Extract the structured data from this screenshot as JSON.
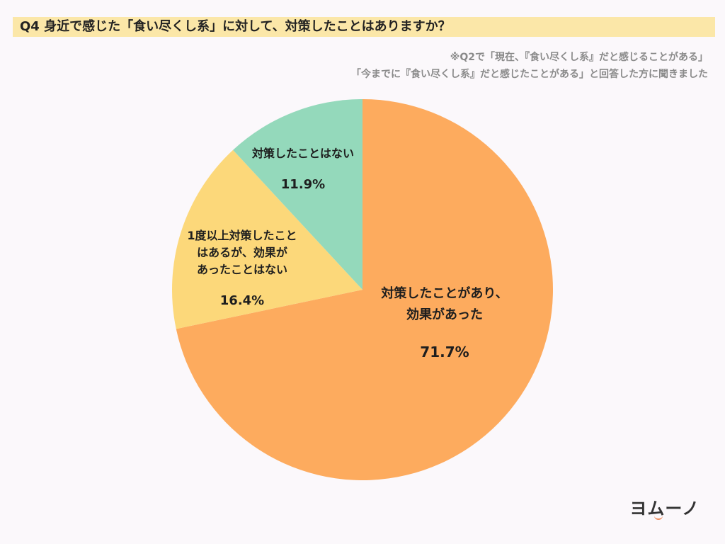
{
  "header": {
    "title": "Q4 身近で感じた「食い尽くし系」に対して、対策したことはありますか？",
    "note_line1": "※Q2で「現在、『食い尽くし系』だと感じることがある」",
    "note_line2": "「今までに『食い尽くし系』だと感じたことがある」と回答した方に聞きました"
  },
  "brand": {
    "logo_text": "ヨムーノ",
    "accent_color": "#f08a5a"
  },
  "chart_data": {
    "type": "pie",
    "title": "Q4 身近で感じた「食い尽くし系」に対して、対策したことはありますか？",
    "start_angle": "12 o'clock",
    "direction": "clockwise",
    "slices": [
      {
        "label_lines": [
          "対策したことがあり、",
          "効果があった"
        ],
        "value": 71.7,
        "display": "71.7%",
        "color": "#fdab5e"
      },
      {
        "label_lines": [
          "1度以上対策したこと",
          "はあるが、効果が",
          "あったことはない"
        ],
        "value": 16.4,
        "display": "16.4%",
        "color": "#fcd87a"
      },
      {
        "label_lines": [
          "対策したことはない"
        ],
        "value": 11.9,
        "display": "11.9%",
        "color": "#94d9bb"
      }
    ]
  }
}
